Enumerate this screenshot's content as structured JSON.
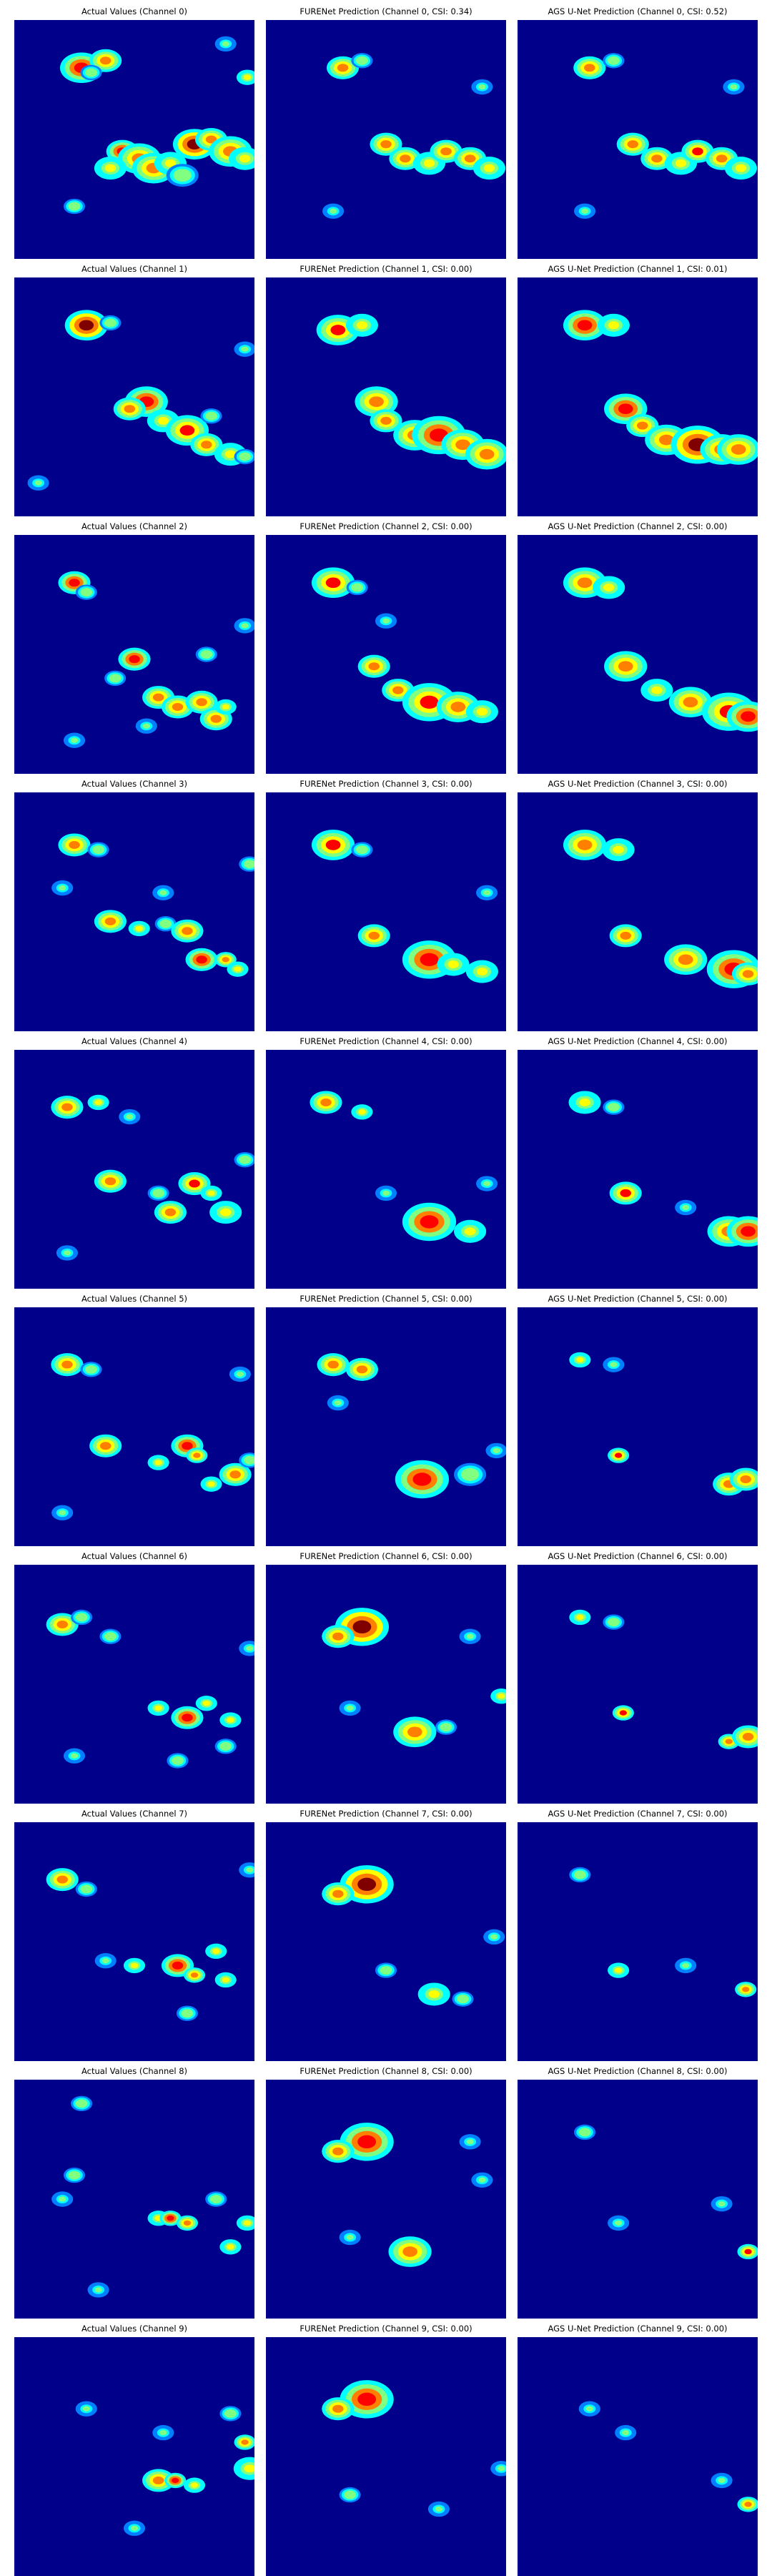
{
  "colors": {
    "background_field": "#00008b",
    "colormap": [
      "#00008b",
      "#0000ff",
      "#0080ff",
      "#00ffff",
      "#80ff80",
      "#ffff00",
      "#ff8000",
      "#ff0000",
      "#800000"
    ]
  },
  "colormap_name": "jet",
  "panel_titles": [
    [
      "Actual Values (Channel 0)",
      "FURENet Prediction (Channel 0, CSI: 0.34)",
      "AGS U-Net Prediction (Channel 0, CSI: 0.52)"
    ],
    [
      "Actual Values (Channel 1)",
      "FURENet Prediction (Channel 1, CSI: 0.00)",
      "AGS U-Net Prediction (Channel 1, CSI: 0.01)"
    ],
    [
      "Actual Values (Channel 2)",
      "FURENet Prediction (Channel 2, CSI: 0.00)",
      "AGS U-Net Prediction (Channel 2, CSI: 0.00)"
    ],
    [
      "Actual Values (Channel 3)",
      "FURENet Prediction (Channel 3, CSI: 0.00)",
      "AGS U-Net Prediction (Channel 3, CSI: 0.00)"
    ],
    [
      "Actual Values (Channel 4)",
      "FURENet Prediction (Channel 4, CSI: 0.00)",
      "AGS U-Net Prediction (Channel 4, CSI: 0.00)"
    ],
    [
      "Actual Values (Channel 5)",
      "FURENet Prediction (Channel 5, CSI: 0.00)",
      "AGS U-Net Prediction (Channel 5, CSI: 0.00)"
    ],
    [
      "Actual Values (Channel 6)",
      "FURENet Prediction (Channel 6, CSI: 0.00)",
      "AGS U-Net Prediction (Channel 6, CSI: 0.00)"
    ],
    [
      "Actual Values (Channel 7)",
      "FURENet Prediction (Channel 7, CSI: 0.00)",
      "AGS U-Net Prediction (Channel 7, CSI: 0.00)"
    ],
    [
      "Actual Values (Channel 8)",
      "FURENet Prediction (Channel 8, CSI: 0.00)",
      "AGS U-Net Prediction (Channel 8, CSI: 0.00)"
    ],
    [
      "Actual Values (Channel 9)",
      "FURENet Prediction (Channel 9, CSI: 0.00)",
      "AGS U-Net Prediction (Channel 9, CSI: 0.00)"
    ]
  ]
}
